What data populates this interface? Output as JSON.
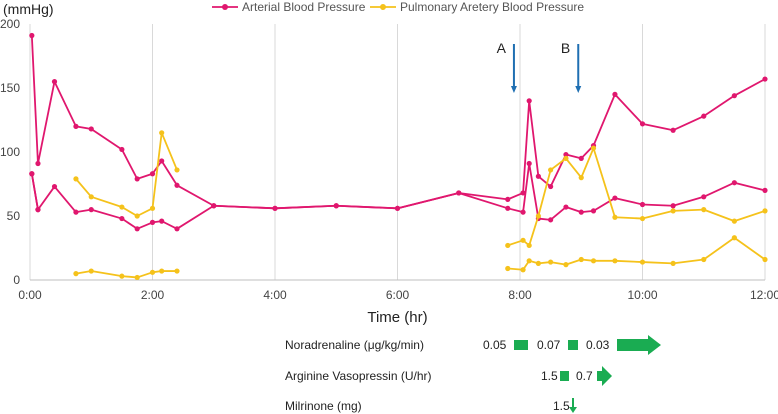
{
  "chart_data": {
    "type": "line",
    "title": "",
    "ylabel": "(mmHg)",
    "xlabel": "Time (hr)",
    "ylim": [
      0,
      200
    ],
    "xlim": [
      0,
      12
    ],
    "yticks": [
      0,
      50,
      100,
      150,
      200
    ],
    "xticks": [
      {
        "value": 0,
        "label": "0:00"
      },
      {
        "value": 2,
        "label": "2:00"
      },
      {
        "value": 4,
        "label": "4:00"
      },
      {
        "value": 6,
        "label": "6:00"
      },
      {
        "value": 8,
        "label": "8:00"
      },
      {
        "value": 10,
        "label": "10:00"
      },
      {
        "value": 12,
        "label": "12:00"
      }
    ],
    "grid": "vertical",
    "legend": [
      "Arterial Blood Pressure",
      "Pulmonary Aretery Blood Pressure"
    ],
    "series": [
      {
        "name": "Arterial Blood Pressure",
        "color": "#e0176e",
        "legend": true,
        "points": [
          [
            0.03,
            191
          ],
          [
            0.13,
            91
          ],
          [
            0.4,
            155
          ],
          [
            0.75,
            120
          ],
          [
            1.0,
            118
          ],
          [
            1.5,
            102
          ],
          [
            1.75,
            79
          ],
          [
            2.0,
            83
          ],
          [
            2.15,
            93
          ],
          [
            2.4,
            74
          ],
          [
            3.0,
            58
          ],
          [
            4.0,
            56
          ],
          [
            5.0,
            58
          ],
          [
            6.0,
            56
          ],
          [
            7.0,
            68
          ],
          [
            7.8,
            63
          ],
          [
            8.05,
            68
          ],
          [
            8.15,
            140
          ],
          [
            8.3,
            81
          ],
          [
            8.5,
            73
          ],
          [
            8.75,
            98
          ],
          [
            9.0,
            95
          ],
          [
            9.2,
            105
          ],
          [
            9.55,
            145
          ],
          [
            10.0,
            122
          ],
          [
            10.5,
            117
          ],
          [
            11.0,
            128
          ],
          [
            11.5,
            144
          ],
          [
            12.0,
            157
          ]
        ]
      },
      {
        "name": "Arterial Blood Pressure (mean)",
        "color": "#e0176e",
        "legend": false,
        "points": [
          [
            0.03,
            83
          ],
          [
            0.13,
            55
          ],
          [
            0.4,
            73
          ],
          [
            0.75,
            53
          ],
          [
            1.0,
            55
          ],
          [
            1.5,
            48
          ],
          [
            1.75,
            40
          ],
          [
            2.0,
            45
          ],
          [
            2.15,
            46
          ],
          [
            2.4,
            40
          ],
          [
            3.0,
            58
          ],
          [
            4.0,
            56
          ],
          [
            5.0,
            58
          ],
          [
            6.0,
            56
          ],
          [
            7.0,
            68
          ],
          [
            7.8,
            56
          ],
          [
            8.05,
            53
          ],
          [
            8.15,
            91
          ],
          [
            8.3,
            48
          ],
          [
            8.5,
            47
          ],
          [
            8.75,
            57
          ],
          [
            9.0,
            53
          ],
          [
            9.2,
            54
          ],
          [
            9.55,
            64
          ],
          [
            10.0,
            59
          ],
          [
            10.5,
            58
          ],
          [
            11.0,
            65
          ],
          [
            11.5,
            76
          ],
          [
            12.0,
            70
          ]
        ]
      },
      {
        "name": "Arterial Blood Pressure (diastolic)",
        "color": "#e0176e",
        "legend": false,
        "points": [
          [
            0.03,
            83
          ],
          [
            0.13,
            55
          ]
        ]
      },
      {
        "name": "Pulmonary Aretery Blood Pressure",
        "color": "#f5c21b",
        "legend": true,
        "points": [
          [
            0.75,
            79
          ],
          [
            1.0,
            65
          ],
          [
            1.5,
            57
          ],
          [
            1.75,
            50
          ],
          [
            2.0,
            56
          ],
          [
            2.15,
            115
          ],
          [
            2.4,
            86
          ]
        ]
      },
      {
        "name": "Pulmonary Aretery Blood Pressure (later)",
        "color": "#f5c21b",
        "legend": false,
        "points": [
          [
            7.8,
            27
          ],
          [
            8.05,
            31
          ],
          [
            8.15,
            27
          ],
          [
            8.3,
            50
          ],
          [
            8.5,
            86
          ],
          [
            8.75,
            95
          ],
          [
            9.0,
            80
          ],
          [
            9.2,
            103
          ],
          [
            9.55,
            49
          ],
          [
            10.0,
            48
          ],
          [
            10.5,
            54
          ],
          [
            11.0,
            55
          ],
          [
            11.5,
            46
          ],
          [
            12.0,
            54
          ]
        ]
      },
      {
        "name": "Pulmonary Aretery Blood Pressure (low, early)",
        "color": "#f5c21b",
        "legend": false,
        "points": [
          [
            0.75,
            5
          ],
          [
            1.0,
            7
          ],
          [
            1.5,
            3
          ],
          [
            1.75,
            2
          ],
          [
            2.0,
            6
          ],
          [
            2.15,
            7
          ],
          [
            2.4,
            7
          ]
        ]
      },
      {
        "name": "Pulmonary Aretery Blood Pressure (low, late)",
        "color": "#f5c21b",
        "legend": false,
        "points": [
          [
            7.8,
            9
          ],
          [
            8.05,
            8
          ],
          [
            8.15,
            15
          ],
          [
            8.3,
            13
          ],
          [
            8.5,
            14
          ],
          [
            8.75,
            12
          ],
          [
            9.0,
            16
          ],
          [
            9.2,
            15
          ],
          [
            9.55,
            15
          ],
          [
            10.0,
            14
          ],
          [
            10.5,
            13
          ],
          [
            11.0,
            16
          ],
          [
            11.5,
            33
          ],
          [
            12.0,
            16
          ]
        ]
      }
    ],
    "annotations": [
      {
        "label": "A",
        "x": 7.95
      },
      {
        "label": "B",
        "x": 9.0
      }
    ],
    "medications": [
      {
        "label": "Noradrenaline (μg/kg/min)",
        "doses": [
          "0.05",
          "0.07",
          "0.03"
        ]
      },
      {
        "label": "Arginine Vasopressin (U/hr)",
        "doses": [
          "1.5",
          "0.7"
        ]
      },
      {
        "label": "Milrinone (mg)",
        "doses": [
          "1.5"
        ]
      }
    ]
  },
  "colors": {
    "arterial": "#e0176e",
    "pulmonary": "#f5c21b",
    "arrow": "#1f6fb2",
    "medication": "#1aac52",
    "grid": "#d9d9d9"
  }
}
